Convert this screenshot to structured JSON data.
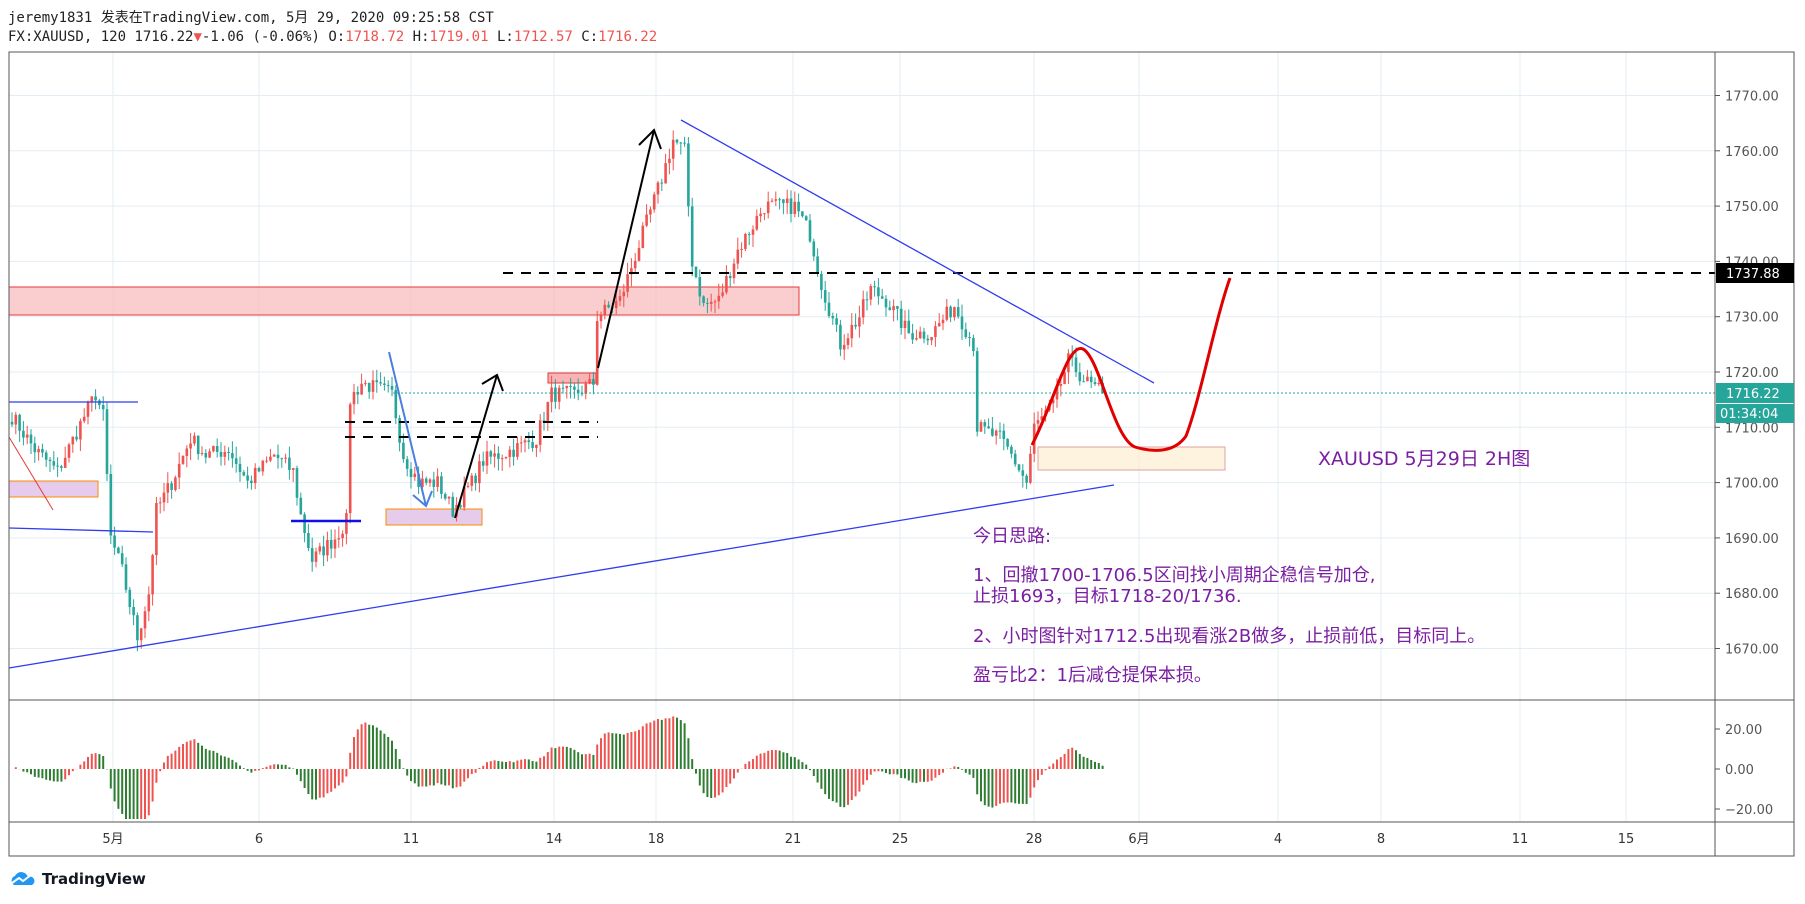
{
  "header": {
    "line1": "jeremy1831 发表在TradingView.com, 5月 29, 2020 09:25:58 CST",
    "symbol": "FX:XAUUSD, 120",
    "last": "1716.22",
    "change": "-1.06 (-0.06%)",
    "o_label": "O:",
    "o": "1718.72",
    "h_label": "H:",
    "h": "1719.01",
    "l_label": "L:",
    "l": "1712.57",
    "c_label": "C:",
    "c": "1716.22"
  },
  "chart_data": {
    "type": "candlestick",
    "title": "FX:XAUUSD, 120",
    "y_ticks": [
      "1770.00",
      "1760.00",
      "1750.00",
      "1740.00",
      "1730.00",
      "1720.00",
      "1710.00",
      "1700.00",
      "1690.00",
      "1680.00",
      "1670.00"
    ],
    "ylim": [
      1661,
      1780
    ],
    "x_ticks": [
      "5月",
      "6",
      "11",
      "14",
      "18",
      "21",
      "25",
      "28",
      "6月",
      "4",
      "8",
      "11",
      "15"
    ],
    "price_path": [
      [
        0,
        1712
      ],
      [
        6,
        1706
      ],
      [
        12,
        1702
      ],
      [
        19,
        1712
      ],
      [
        22,
        1716
      ],
      [
        24,
        1712
      ],
      [
        26,
        1690
      ],
      [
        29,
        1684
      ],
      [
        33,
        1672
      ],
      [
        36,
        1680
      ],
      [
        38,
        1695
      ],
      [
        42,
        1700
      ],
      [
        47,
        1708
      ],
      [
        51,
        1705
      ],
      [
        57,
        1706
      ],
      [
        62,
        1700
      ],
      [
        69,
        1705
      ],
      [
        74,
        1702
      ],
      [
        76,
        1694
      ],
      [
        79,
        1686
      ],
      [
        85,
        1690
      ],
      [
        88,
        1693
      ],
      [
        89,
        1715
      ],
      [
        92,
        1718
      ],
      [
        100,
        1716
      ],
      [
        103,
        1705
      ],
      [
        107,
        1700
      ],
      [
        112,
        1700
      ],
      [
        116,
        1695
      ],
      [
        121,
        1700
      ],
      [
        124,
        1704
      ],
      [
        132,
        1706
      ],
      [
        138,
        1708
      ],
      [
        142,
        1716
      ],
      [
        148,
        1716
      ],
      [
        153,
        1718
      ],
      [
        154,
        1730
      ],
      [
        160,
        1733
      ],
      [
        166,
        1745
      ],
      [
        171,
        1755
      ],
      [
        174,
        1762
      ],
      [
        177,
        1760
      ],
      [
        179,
        1740
      ],
      [
        182,
        1732
      ],
      [
        186,
        1733
      ],
      [
        191,
        1742
      ],
      [
        198,
        1750
      ],
      [
        206,
        1750
      ],
      [
        210,
        1745
      ],
      [
        213,
        1736
      ],
      [
        218,
        1725
      ],
      [
        223,
        1730
      ],
      [
        226,
        1735
      ],
      [
        230,
        1733
      ],
      [
        236,
        1727
      ],
      [
        242,
        1727
      ],
      [
        248,
        1732
      ],
      [
        253,
        1725
      ],
      [
        254,
        1710
      ],
      [
        260,
        1708
      ],
      [
        263,
        1705
      ],
      [
        267,
        1700
      ],
      [
        269,
        1710
      ],
      [
        274,
        1714
      ],
      [
        278,
        1722
      ],
      [
        283,
        1718
      ],
      [
        287,
        1716.22
      ]
    ],
    "last_price": "1716.22",
    "countdown": "01:34:04",
    "level_label": "1737.88",
    "osc_ticks": [
      "20.00",
      "0.00",
      "−20.00"
    ],
    "osc_range": [
      -25,
      28
    ],
    "colors": {
      "up": "#ef5350",
      "down": "#26a69a",
      "osc_up": "#ef5350",
      "osc_down": "#2e7d32"
    }
  },
  "annotations": {
    "title": "XAUUSD  5月29日 2H图",
    "lines": [
      "今日思路:",
      "1、回撤1700-1706.5区间找小周期企稳信号加仓,",
      "止损1693，目标1718-20/1736.",
      "2、小时图针对1712.5出现看涨2B做多，止损前低，目标同上。",
      "盈亏比2：1后减仓提保本损。"
    ]
  },
  "branding": {
    "logo_text": "TradingView"
  }
}
